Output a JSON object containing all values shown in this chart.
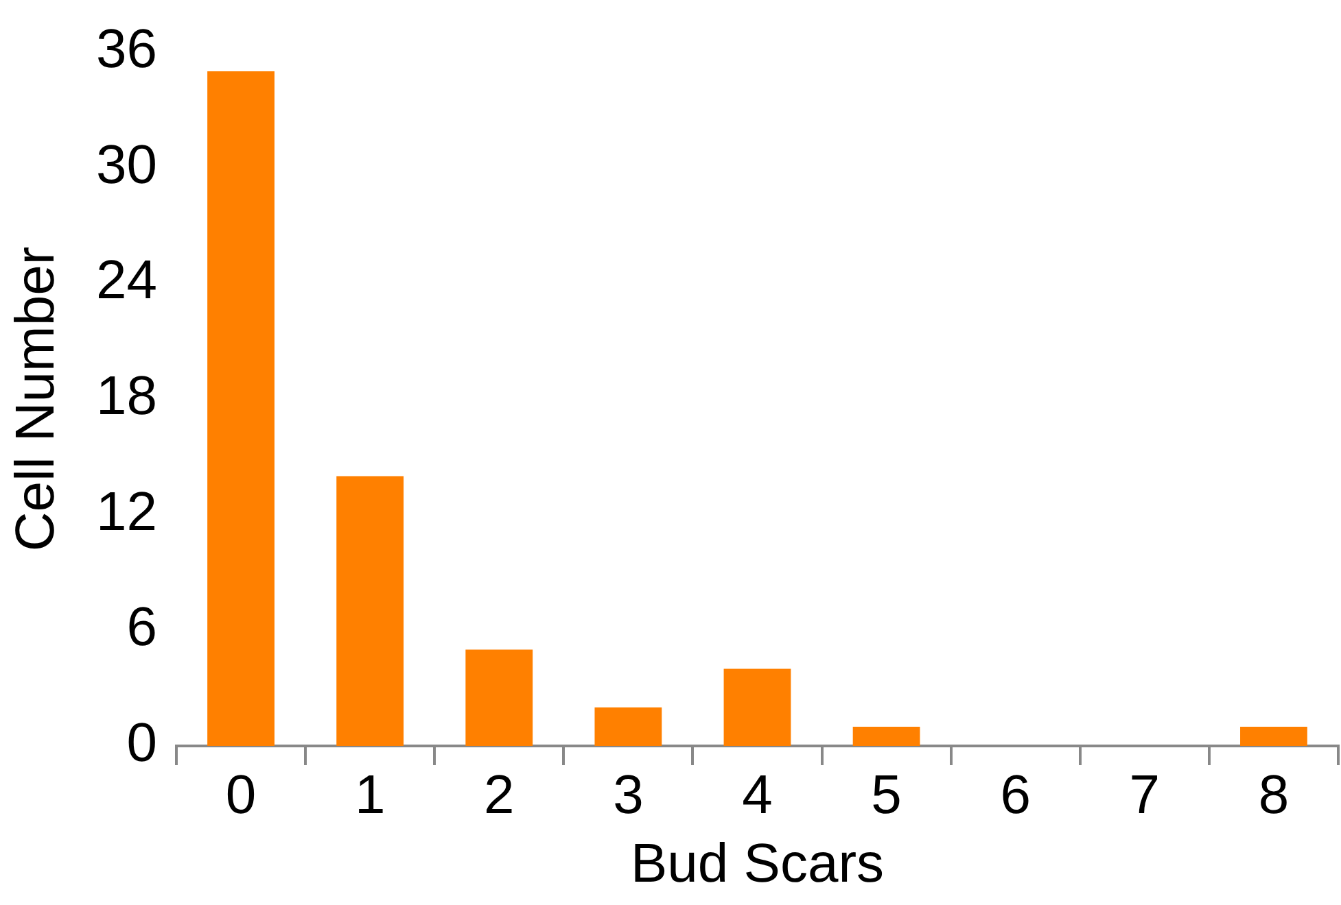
{
  "chart_data": {
    "type": "bar",
    "xlabel": "Bud Scars",
    "ylabel": "Cell Number",
    "categories": [
      "0",
      "1",
      "2",
      "3",
      "4",
      "5",
      "6",
      "7",
      "8"
    ],
    "values": [
      35,
      14,
      5,
      2,
      4,
      1,
      0,
      0,
      1
    ],
    "color": "#ff8000",
    "ylim": [
      0,
      36
    ],
    "yticks": [
      0,
      6,
      12,
      18,
      24,
      30,
      36
    ],
    "grid": false,
    "legend": false
  }
}
